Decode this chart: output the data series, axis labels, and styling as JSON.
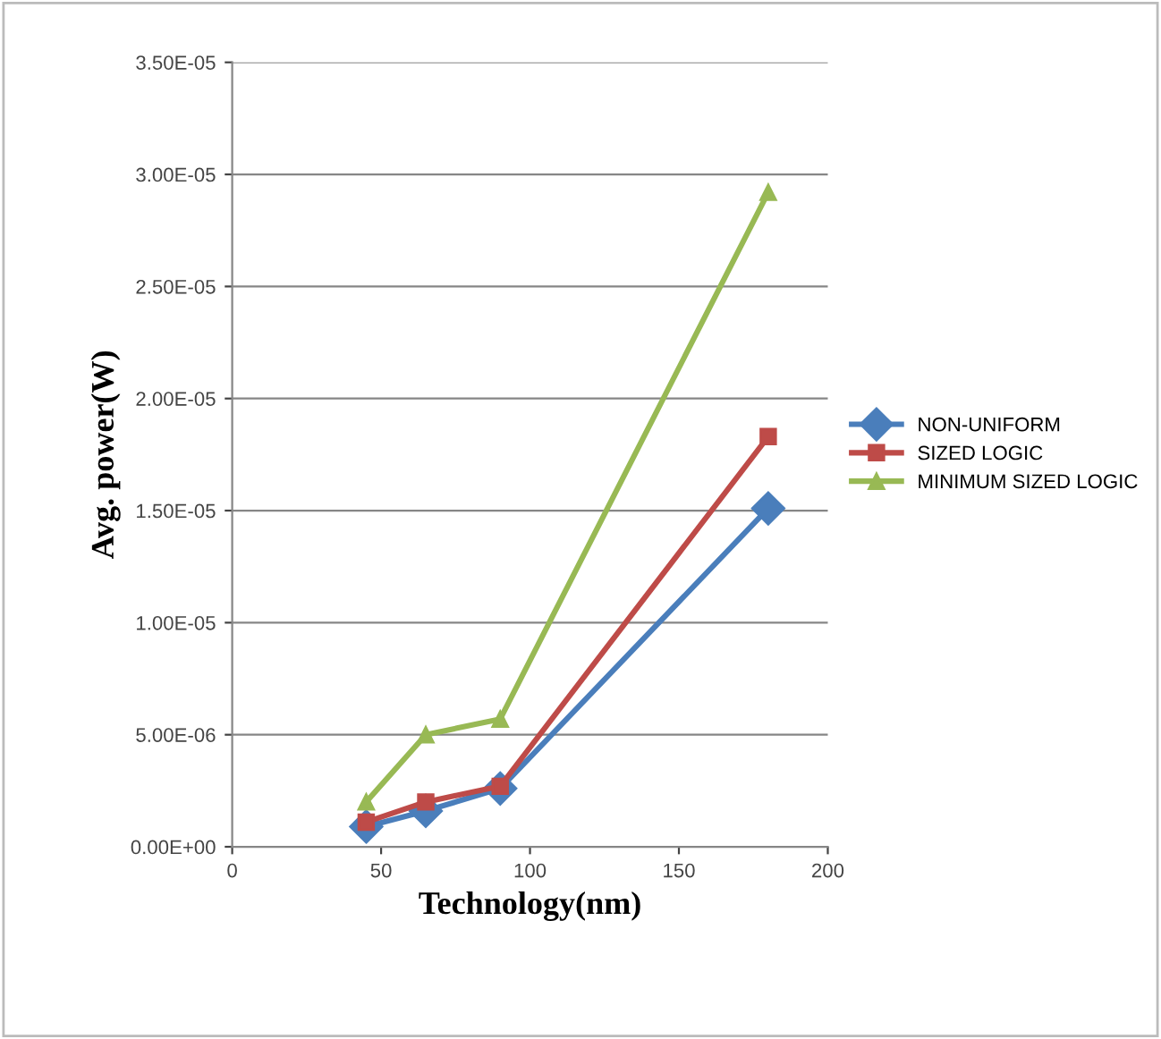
{
  "chart_data": {
    "type": "line",
    "xlabel": "Technology(nm)",
    "ylabel": "Avg. power(W)",
    "series": [
      {
        "name": "NON-UNIFORM",
        "color": "#4a7ebb",
        "marker": "diamond",
        "x": [
          45,
          65,
          90,
          180
        ],
        "values": [
          9e-07,
          1.6e-06,
          2.6e-06,
          1.51e-05
        ]
      },
      {
        "name": "SIZED LOGIC",
        "color": "#be4b48",
        "marker": "square",
        "x": [
          45,
          65,
          90,
          180
        ],
        "values": [
          1.1e-06,
          2e-06,
          2.7e-06,
          1.83e-05
        ]
      },
      {
        "name": "MINIMUM SIZED LOGIC",
        "color": "#98b954",
        "marker": "triangle",
        "x": [
          45,
          65,
          90,
          180
        ],
        "values": [
          2e-06,
          5e-06,
          5.7e-06,
          2.92e-05
        ]
      }
    ],
    "xlim": [
      0,
      200
    ],
    "xticks": [
      0,
      50,
      100,
      150,
      200
    ],
    "ylim": [
      0,
      3.5e-05
    ],
    "yticks": [
      {
        "value": 0,
        "label": "0.00E+00"
      },
      {
        "value": 5e-06,
        "label": "5.00E-06"
      },
      {
        "value": 1e-05,
        "label": "1.00E-05"
      },
      {
        "value": 1.5e-05,
        "label": "1.50E-05"
      },
      {
        "value": 2e-05,
        "label": "2.00E-05"
      },
      {
        "value": 2.5e-05,
        "label": "2.50E-05"
      },
      {
        "value": 3e-05,
        "label": "3.00E-05"
      },
      {
        "value": 3.5e-05,
        "label": "3.50E-05"
      }
    ],
    "grid": "y",
    "legend": "right",
    "line_style": "solid"
  }
}
